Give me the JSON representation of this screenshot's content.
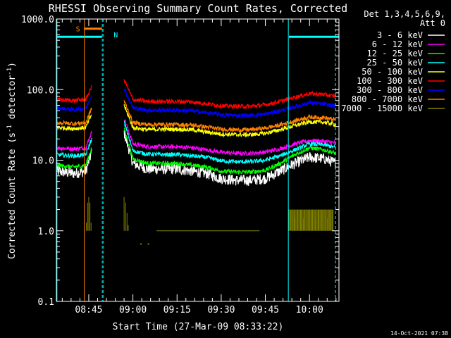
{
  "chart_data": {
    "type": "line",
    "title": "RHESSI Observing Summary Count Rates, Corrected",
    "xlabel": "Start Time (27-Mar-09 08:33:22)",
    "ylabel_main": "Corrected Count Rate (s",
    "ylabel_sup1": "-1",
    "ylabel_mid": " detector",
    "ylabel_sup2": "-1",
    "ylabel_end": ")",
    "y_scale": "log",
    "ylim": [
      0.1,
      1000
    ],
    "xlim_min": [
      34,
      130
    ],
    "x_ticks": [
      {
        "min": 45,
        "label": "08:45"
      },
      {
        "min": 60,
        "label": "09:00"
      },
      {
        "min": 75,
        "label": "09:15"
      },
      {
        "min": 90,
        "label": "09:30"
      },
      {
        "min": 105,
        "label": "09:45"
      },
      {
        "min": 120,
        "label": "10:00"
      }
    ],
    "y_ticks": [
      {
        "v": 0.1,
        "label": "0.1"
      },
      {
        "v": 1,
        "label": "1.0"
      },
      {
        "v": 10,
        "label": "10.0"
      },
      {
        "v": 100,
        "label": "100.0"
      },
      {
        "v": 1000,
        "label": "1000.0"
      }
    ],
    "legend_header": [
      "Det 1,3,4,5,6,9,",
      "Att 0"
    ],
    "legend_position": "right",
    "series": [
      {
        "name": "3 - 6 keV",
        "color": "#ffffff",
        "x": [
          34,
          40,
          44,
          46,
          48,
          56,
          57,
          60,
          65,
          70,
          75,
          80,
          85,
          90,
          95,
          100,
          105,
          110,
          115,
          120,
          125,
          129
        ],
        "y": [
          7,
          6.5,
          7,
          13,
          null,
          null,
          25,
          9,
          7.5,
          7.5,
          7.5,
          7,
          6.5,
          5.5,
          5.2,
          5.2,
          5.5,
          7,
          9,
          11,
          10.5,
          9
        ]
      },
      {
        "name": "6 - 12 keV",
        "color": "#ff00ff",
        "x": [
          34,
          40,
          44,
          46,
          48,
          56,
          57,
          60,
          65,
          70,
          75,
          80,
          85,
          90,
          95,
          100,
          105,
          110,
          115,
          120,
          125,
          129
        ],
        "y": [
          15,
          14.5,
          15,
          25,
          null,
          null,
          40,
          17,
          15.5,
          15.5,
          15.5,
          15,
          14,
          13,
          12.5,
          12.5,
          13,
          14.5,
          17,
          19,
          18.5,
          17.5
        ]
      },
      {
        "name": "12 - 25 keV",
        "color": "#00ff00",
        "x": [
          34,
          40,
          44,
          46,
          48,
          56,
          57,
          60,
          65,
          70,
          75,
          80,
          85,
          90,
          95,
          100,
          105,
          110,
          115,
          120,
          125,
          129
        ],
        "y": [
          8.5,
          8,
          8.5,
          15,
          null,
          null,
          28,
          10.5,
          9,
          9,
          9,
          8.5,
          8,
          7,
          6.8,
          6.8,
          7.2,
          9,
          12,
          15,
          14,
          12.5
        ]
      },
      {
        "name": "25 - 50 keV",
        "color": "#00ffff",
        "x": [
          34,
          40,
          44,
          46,
          48,
          56,
          57,
          60,
          65,
          70,
          75,
          80,
          85,
          90,
          95,
          100,
          105,
          110,
          115,
          120,
          125,
          129
        ],
        "y": [
          12,
          11.5,
          12,
          20,
          null,
          null,
          35,
          13.5,
          12.2,
          12,
          12,
          11.5,
          11,
          9.8,
          9.5,
          9.5,
          10,
          11.5,
          14,
          17,
          16.5,
          15
        ]
      },
      {
        "name": "50 - 100 keV",
        "color": "#ffff00",
        "x": [
          34,
          40,
          44,
          46,
          48,
          56,
          57,
          60,
          65,
          70,
          75,
          80,
          85,
          90,
          95,
          100,
          105,
          110,
          115,
          120,
          125,
          129
        ],
        "y": [
          29,
          28,
          29,
          45,
          null,
          null,
          60,
          29,
          27,
          27.5,
          27.5,
          27,
          25,
          23.5,
          23,
          23,
          24,
          27,
          31,
          35,
          34.5,
          32
        ]
      },
      {
        "name": "100 - 300 keV",
        "color": "#ff0000",
        "x": [
          34,
          40,
          44,
          46,
          48,
          56,
          57,
          60,
          65,
          70,
          75,
          80,
          85,
          90,
          95,
          100,
          105,
          110,
          115,
          120,
          125,
          129
        ],
        "y": [
          72,
          70,
          72,
          110,
          null,
          null,
          140,
          72,
          68,
          68,
          68,
          67,
          63,
          59,
          58,
          58,
          61,
          68,
          78,
          88,
          85,
          80
        ]
      },
      {
        "name": "300 - 800 keV",
        "color": "#0000ff",
        "x": [
          34,
          40,
          44,
          46,
          48,
          56,
          57,
          60,
          65,
          70,
          75,
          80,
          85,
          90,
          95,
          100,
          105,
          110,
          115,
          120,
          125,
          129
        ],
        "y": [
          55,
          52,
          54,
          85,
          null,
          null,
          105,
          55,
          51,
          51,
          51,
          50,
          47,
          44,
          43,
          43,
          45,
          50,
          57,
          65,
          62,
          58
        ]
      },
      {
        "name": "800 - 7000 keV",
        "color": "#ff8000",
        "x": [
          34,
          40,
          44,
          46,
          48,
          56,
          57,
          60,
          65,
          70,
          75,
          80,
          85,
          90,
          95,
          100,
          105,
          110,
          115,
          120,
          125,
          129
        ],
        "y": [
          34,
          33,
          34,
          55,
          null,
          null,
          70,
          34,
          32,
          32,
          32,
          31.5,
          29.5,
          27.5,
          27,
          27,
          28.5,
          31.5,
          36,
          41,
          40,
          37
        ]
      },
      {
        "name": "7000 - 15000 keV",
        "color": "#808000",
        "x": [
          44.2,
          44.6,
          45,
          45.4,
          45.8,
          57,
          57.5,
          58,
          58.4,
          68,
          70,
          72,
          74,
          80,
          85,
          90,
          96,
          100,
          101,
          102,
          103,
          112,
          113,
          114,
          115,
          116,
          117,
          118,
          119,
          120,
          121,
          122,
          123,
          124,
          125,
          126,
          127,
          128
        ],
        "y": [
          1.3,
          2.5,
          3,
          2.5,
          1.3,
          3,
          2.5,
          1.8,
          1.2,
          1,
          1,
          1,
          1,
          1,
          1,
          1,
          1,
          1,
          1,
          1,
          1,
          1,
          2,
          2,
          1.5,
          2,
          2,
          1.5,
          2,
          2,
          2,
          1.5,
          2,
          2,
          2,
          1.5,
          2,
          1
        ]
      }
    ],
    "segments_7000": [
      {
        "x1": 62.5,
        "x2": 63.0,
        "v": 0.65
      },
      {
        "x1": 65.0,
        "x2": 65.5,
        "v": 0.65
      }
    ],
    "flag_bars": [
      {
        "label": "",
        "color": "#00ffff",
        "x1": 34,
        "x2": 49.5,
        "v": 560
      },
      {
        "label": "S",
        "color": "#ff8000",
        "x1": 43.5,
        "x2": 49.5,
        "v": 730
      },
      {
        "label": "N",
        "color": "#00ffff",
        "x1": 52,
        "x2": 52,
        "v": 600
      },
      {
        "label": "",
        "color": "#00ffff",
        "x1": 113,
        "x2": 130,
        "v": 560
      }
    ],
    "v_lines": [
      {
        "min": 34.2,
        "color": "#00ffff",
        "dash": false
      },
      {
        "min": 43.5,
        "color": "#ff8000",
        "dash": false
      },
      {
        "min": 49.6,
        "color": "#00ffff",
        "dash": true
      },
      {
        "min": 50.0,
        "color": "#ff8000",
        "dash": true
      },
      {
        "min": 112.8,
        "color": "#00ffff",
        "dash": false
      },
      {
        "min": 128.8,
        "color": "#00ffff",
        "dash": true
      }
    ],
    "footer_timestamp": "14-Oct-2021 07:38"
  }
}
